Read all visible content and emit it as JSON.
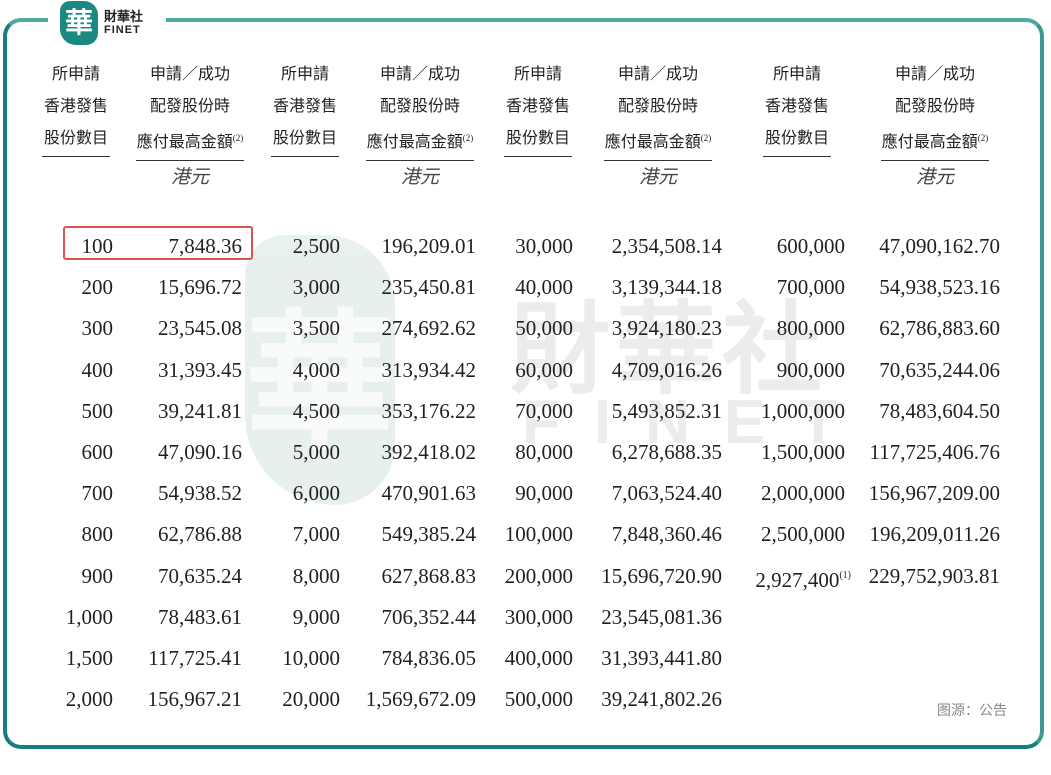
{
  "brand": {
    "logo_char": "華",
    "name_cn": "財華社",
    "name_en": "FINET"
  },
  "watermark": {
    "char": "華",
    "cn": "財華社",
    "en": "FINET"
  },
  "headers": {
    "shares": [
      "所申請",
      "香港發售",
      "股份數目"
    ],
    "amount": [
      "申請／成功",
      "配發股份時",
      "應付最高金額"
    ],
    "amount_note": "(2)",
    "unit": "港元"
  },
  "table": {
    "groups": [
      {
        "shares": [
          "100",
          "200",
          "300",
          "400",
          "500",
          "600",
          "700",
          "800",
          "900",
          "1,000",
          "1,500",
          "2,000"
        ],
        "amounts": [
          "7,848.36",
          "15,696.72",
          "23,545.08",
          "31,393.45",
          "39,241.81",
          "47,090.16",
          "54,938.52",
          "62,786.88",
          "70,635.24",
          "78,483.61",
          "117,725.41",
          "156,967.21"
        ]
      },
      {
        "shares": [
          "2,500",
          "3,000",
          "3,500",
          "4,000",
          "4,500",
          "5,000",
          "6,000",
          "7,000",
          "8,000",
          "9,000",
          "10,000",
          "20,000"
        ],
        "amounts": [
          "196,209.01",
          "235,450.81",
          "274,692.62",
          "313,934.42",
          "353,176.22",
          "392,418.02",
          "470,901.63",
          "549,385.24",
          "627,868.83",
          "706,352.44",
          "784,836.05",
          "1,569,672.09"
        ]
      },
      {
        "shares": [
          "30,000",
          "40,000",
          "50,000",
          "60,000",
          "70,000",
          "80,000",
          "90,000",
          "100,000",
          "200,000",
          "300,000",
          "400,000",
          "500,000"
        ],
        "amounts": [
          "2,354,508.14",
          "3,139,344.18",
          "3,924,180.23",
          "4,709,016.26",
          "5,493,852.31",
          "6,278,688.35",
          "7,063,524.40",
          "7,848,360.46",
          "15,696,720.90",
          "23,545,081.36",
          "31,393,441.80",
          "39,241,802.26"
        ]
      },
      {
        "shares": [
          "600,000",
          "700,000",
          "800,000",
          "900,000",
          "1,000,000",
          "1,500,000",
          "2,000,000",
          "2,500,000",
          "2,927,400"
        ],
        "shares_last_note": "(1)",
        "amounts": [
          "47,090,162.70",
          "54,938,523.16",
          "62,786,883.60",
          "70,635,244.06",
          "78,483,604.50",
          "117,725,406.76",
          "156,967,209.00",
          "196,209,011.26",
          "229,752,903.81"
        ]
      }
    ],
    "highlighted_row": {
      "shares": "100",
      "amount": "7,848.36"
    }
  },
  "source": "图源：公告",
  "colors": {
    "frame": "#1a7f7a",
    "highlight": "#d9534f",
    "logo": "#1a8a80"
  }
}
